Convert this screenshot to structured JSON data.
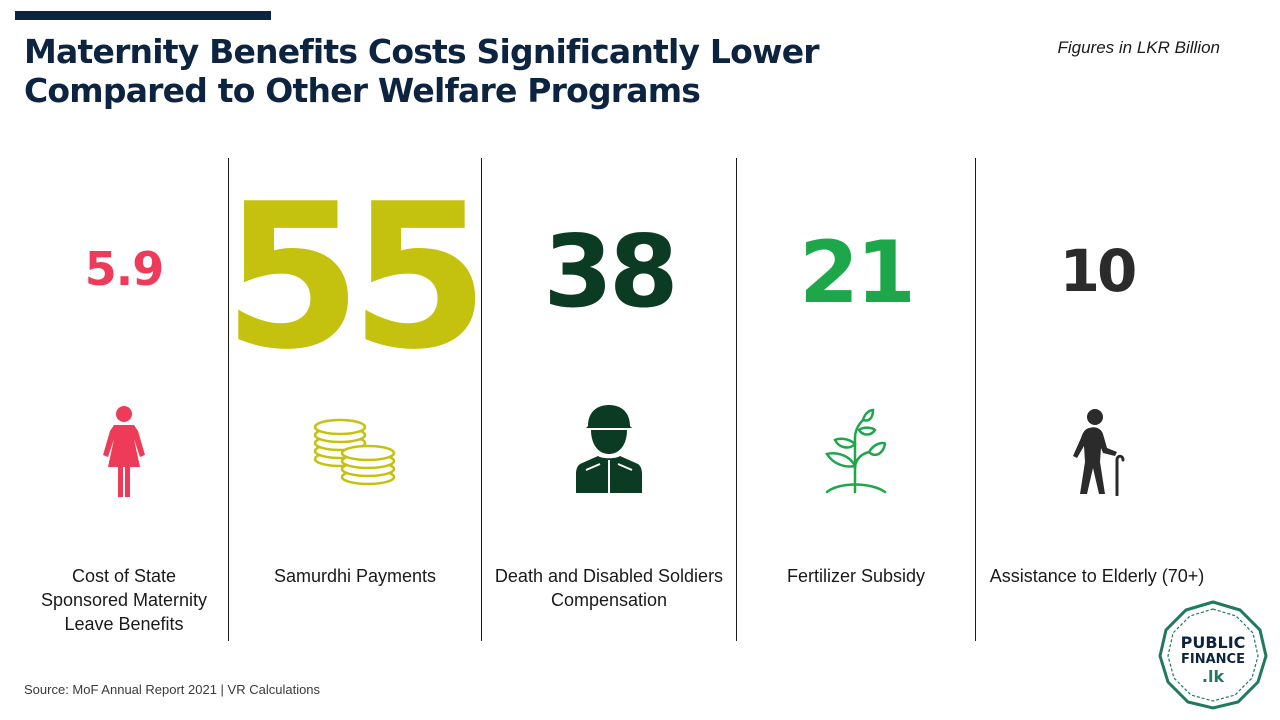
{
  "header": {
    "title_line1": "Maternity Benefits Costs Significantly Lower",
    "title_line2": "Compared to Other Welfare Programs",
    "units_note": "Figures in LKR Billion"
  },
  "chart_data": {
    "type": "bar",
    "title": "Maternity Benefits Costs Significantly Lower Compared to Other Welfare Programs",
    "subtitle": "Figures in LKR Billion",
    "categories": [
      "Cost of State Sponsored Maternity Leave Benefits",
      "Samurdhi Payments",
      "Death and Disabled Soldiers Compensation",
      "Fertilizer Subsidy",
      "Assistance to Elderly (70+)"
    ],
    "values": [
      5.9,
      55,
      38,
      21,
      10
    ],
    "value_labels": [
      "5.9",
      "55",
      "38",
      "21",
      "10"
    ],
    "colors": [
      "#ef3b5a",
      "#c5c10f",
      "#0c3b24",
      "#1ea64b",
      "#2b2b2b"
    ],
    "icons": [
      "woman-icon",
      "coins-icon",
      "soldier-icon",
      "sprout-icon",
      "elderly-person-icon"
    ]
  },
  "labels": {
    "maternity": "Cost of State Sponsored Maternity Leave Benefits",
    "samurdhi": "Samurdhi Payments",
    "soldiers": "Death and Disabled Soldiers Compensation",
    "fertilizer": "Fertilizer Subsidy",
    "elderly": "Assistance to Elderly (70+)"
  },
  "footer": {
    "source": "Source: MoF Annual Report 2021 | VR Calculations"
  },
  "logo": {
    "line1": "PUBLIC",
    "line2": "FINANCE",
    "line3": ".lk",
    "color": "#1f7a5a"
  }
}
